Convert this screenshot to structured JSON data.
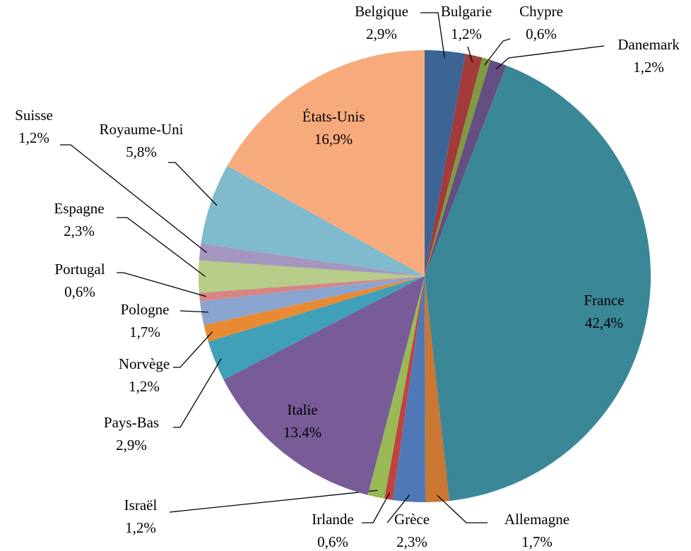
{
  "chart_data": {
    "type": "pie",
    "categories": [
      "Belgique",
      "Bulgarie",
      "Chypre",
      "Danemark",
      "France",
      "Allemagne",
      "Grèce",
      "Irlande",
      "Israël",
      "Italie",
      "Pays-Bas",
      "Norvège",
      "Pologne",
      "Portugal",
      "Espagne",
      "Suisse",
      "Royaume-Uni",
      "États-Unis"
    ],
    "values": [
      2.9,
      1.2,
      0.6,
      1.2,
      42.4,
      1.7,
      2.3,
      0.6,
      1.2,
      13.4,
      2.9,
      1.2,
      1.7,
      0.6,
      2.3,
      1.2,
      5.8,
      16.9
    ],
    "value_labels": [
      "2,9%",
      "1,2%",
      "0,6%",
      "1,2%",
      "42,4%",
      "1,7%",
      "2,3%",
      "0,6%",
      "1,2%",
      "13.4%",
      "2,9%",
      "1,2%",
      "1,7%",
      "0,6%",
      "2,3%",
      "1,2%",
      "5,8%",
      "16,9%"
    ],
    "colors": [
      "#3c6596",
      "#a33b3a",
      "#7f9a3f",
      "#654e83",
      "#3a8797",
      "#c97732",
      "#4f79b6",
      "#bf4441",
      "#98b954",
      "#775c98",
      "#3fa0b8",
      "#e88a34",
      "#8aa4d0",
      "#d68585",
      "#b6cc88",
      "#a596c0",
      "#7fbacd",
      "#f7ab7c"
    ]
  }
}
